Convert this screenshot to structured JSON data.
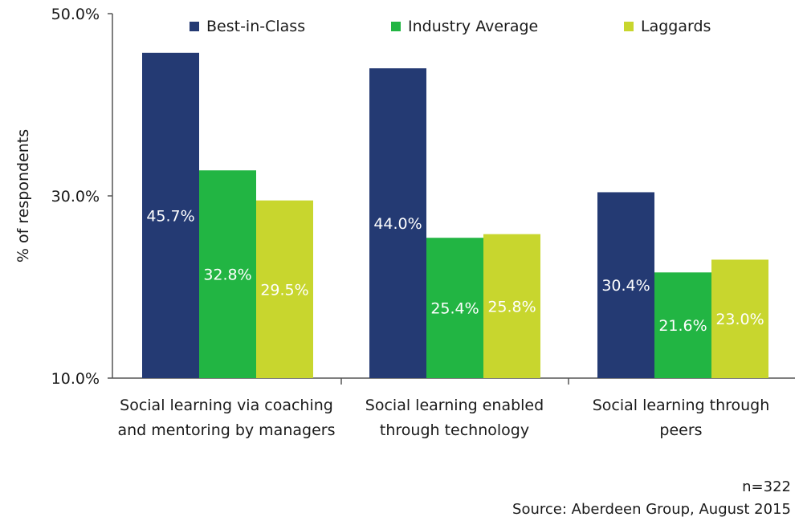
{
  "chart_data": {
    "type": "bar",
    "ylabel": "% of respondents",
    "yticks": [
      "50.0%",
      "30.0%",
      "10.0%"
    ],
    "ylim": [
      10,
      50
    ],
    "grid": false,
    "legend_position": "top",
    "categories": [
      [
        "Social learning via coaching",
        "and mentoring by managers"
      ],
      [
        "Social learning enabled",
        "through technology"
      ],
      [
        "Social learning through",
        "peers"
      ]
    ],
    "series": [
      {
        "name": "Best-in-Class",
        "color": "#243a73",
        "values": [
          45.7,
          44.0,
          30.4
        ],
        "labels": [
          "45.7%",
          "44.0%",
          "30.4%"
        ]
      },
      {
        "name": "Industry Average",
        "color": "#22b543",
        "values": [
          32.8,
          25.4,
          21.6
        ],
        "labels": [
          "32.8%",
          "25.4%",
          "21.6%"
        ]
      },
      {
        "name": "Laggards",
        "color": "#c8d62e",
        "values": [
          29.5,
          25.8,
          23.0
        ],
        "labels": [
          "29.5%",
          "25.8%",
          "23.0%"
        ]
      }
    ]
  },
  "footnotes": {
    "sample": "n=322",
    "source": "Source: Aberdeen Group, August 2015"
  }
}
